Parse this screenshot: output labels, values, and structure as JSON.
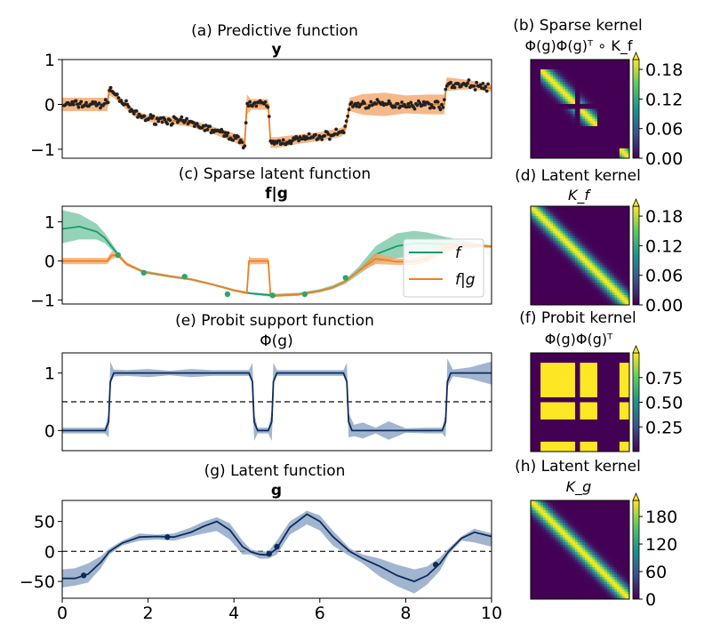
{
  "chart_data": [
    {
      "id": "a",
      "type": "line",
      "title": "(a) Predictive function",
      "subtitle": "y",
      "xlim": [
        0,
        10
      ],
      "ylim": [
        -1.2,
        1.0
      ],
      "yticks": [
        -1,
        0,
        1
      ],
      "series": [
        {
          "role": "band",
          "color": "#f5a66a",
          "x": [
            0,
            1.05,
            1.1,
            1.2,
            1.4,
            1.7,
            2.0,
            2.5,
            3.0,
            3.5,
            4.0,
            4.25,
            4.3,
            4.4,
            4.7,
            4.8,
            4.85,
            5.0,
            5.5,
            6.0,
            6.5,
            6.6,
            6.7,
            7.0,
            7.5,
            8.0,
            8.5,
            8.9,
            8.95,
            9.0,
            9.5,
            10
          ],
          "upper": [
            0.15,
            0.15,
            0.35,
            0.32,
            0.12,
            -0.14,
            -0.24,
            -0.27,
            -0.34,
            -0.49,
            -0.64,
            -0.77,
            0.22,
            0.12,
            0.12,
            0.12,
            -0.73,
            -0.73,
            -0.67,
            -0.62,
            -0.52,
            -0.44,
            0.15,
            0.23,
            0.26,
            0.2,
            0.22,
            0.22,
            0.6,
            0.6,
            0.54,
            0.44
          ],
          "lower": [
            -0.15,
            -0.15,
            0.2,
            0.15,
            -0.03,
            -0.29,
            -0.39,
            -0.43,
            -0.5,
            -0.65,
            -0.84,
            -0.97,
            -0.22,
            -0.12,
            -0.12,
            -0.12,
            -0.97,
            -0.97,
            -0.88,
            -0.82,
            -0.72,
            -0.61,
            -0.15,
            -0.23,
            -0.26,
            -0.2,
            -0.22,
            -0.22,
            0.3,
            0.3,
            0.34,
            0.28
          ]
        },
        {
          "role": "mean",
          "color": "#f07f1e",
          "x": [
            0,
            1.05,
            1.1,
            1.2,
            1.4,
            1.7,
            2.0,
            2.5,
            3.0,
            3.5,
            4.0,
            4.25,
            4.3,
            4.4,
            4.7,
            4.8,
            4.85,
            5.0,
            5.5,
            6.0,
            6.5,
            6.6,
            6.7,
            7.0,
            7.5,
            8.0,
            8.5,
            8.9,
            8.95,
            9.0,
            9.5,
            10
          ],
          "y": [
            0,
            0,
            0.37,
            0.26,
            0.05,
            -0.22,
            -0.32,
            -0.35,
            -0.42,
            -0.57,
            -0.74,
            -0.87,
            0,
            0,
            0,
            0,
            -0.85,
            -0.85,
            -0.78,
            -0.72,
            -0.62,
            -0.53,
            0,
            0,
            0,
            0,
            0,
            0,
            0.45,
            0.45,
            0.44,
            0.36
          ]
        }
      ]
    },
    {
      "id": "c",
      "type": "line",
      "title": "(c) Sparse latent function",
      "subtitle": "f|g",
      "xlim": [
        0,
        10
      ],
      "ylim": [
        -1.1,
        1.4
      ],
      "yticks": [
        -1,
        0,
        1
      ],
      "legend": {
        "position": "right",
        "entries": [
          "f",
          "f|g"
        ]
      },
      "series": [
        {
          "role": "band",
          "color": "#7ac8a8",
          "x": [
            0,
            0.4,
            0.8,
            1.0,
            1.3,
            1.5,
            1.9,
            2.5,
            3.0,
            3.5,
            4.0,
            4.4,
            4.9,
            5.5,
            6.0,
            6.3,
            6.6,
            6.9,
            7.3,
            7.8,
            8.2,
            8.5,
            8.9,
            9.3,
            9.7,
            10
          ],
          "upper": [
            1.3,
            1.2,
            0.95,
            0.7,
            0.22,
            -0.05,
            -0.24,
            -0.36,
            -0.44,
            -0.57,
            -0.72,
            -0.8,
            -0.84,
            -0.81,
            -0.72,
            -0.62,
            -0.47,
            -0.15,
            0.38,
            0.71,
            0.77,
            0.73,
            0.62,
            0.53,
            0.45,
            0.4
          ],
          "lower": [
            0.45,
            0.55,
            0.55,
            0.45,
            0.1,
            -0.12,
            -0.32,
            -0.42,
            -0.5,
            -0.63,
            -0.78,
            -0.86,
            -0.92,
            -0.89,
            -0.8,
            -0.72,
            -0.58,
            -0.35,
            -0.05,
            0.07,
            0.13,
            0.18,
            0.25,
            0.3,
            0.34,
            0.34
          ]
        },
        {
          "role": "mean",
          "name": "f",
          "color": "#1a9a6a",
          "x": [
            0,
            0.4,
            0.8,
            1.0,
            1.3,
            1.5,
            1.9,
            2.5,
            3.0,
            3.5,
            4.0,
            4.4,
            4.9,
            5.5,
            6.0,
            6.3,
            6.6,
            6.9,
            7.3,
            7.8,
            8.2,
            8.5,
            8.9,
            9.3,
            9.7,
            10
          ],
          "y": [
            0.82,
            0.88,
            0.75,
            0.58,
            0.16,
            -0.08,
            -0.28,
            -0.39,
            -0.47,
            -0.6,
            -0.75,
            -0.83,
            -0.88,
            -0.85,
            -0.76,
            -0.67,
            -0.52,
            -0.25,
            0.17,
            0.38,
            0.45,
            0.45,
            0.43,
            0.41,
            0.39,
            0.37
          ]
        },
        {
          "role": "band",
          "color": "#f5a66a",
          "x": [
            0,
            1.05,
            1.15,
            1.3,
            1.5,
            1.9,
            2.5,
            3.0,
            3.5,
            4.0,
            4.3,
            4.35,
            4.4,
            4.8,
            4.85,
            4.9,
            5.5,
            6.0,
            6.3,
            6.6,
            6.9,
            7.3,
            7.8,
            8.2,
            8.5,
            8.9,
            9.3,
            9.7,
            10
          ],
          "upper": [
            0.08,
            0.08,
            0.24,
            0.2,
            -0.03,
            -0.26,
            -0.37,
            -0.45,
            -0.58,
            -0.72,
            -0.79,
            0.12,
            0.08,
            0.08,
            -0.84,
            -0.86,
            -0.83,
            -0.74,
            -0.65,
            -0.49,
            -0.22,
            0.2,
            0.06,
            0.08,
            0.18,
            0.42,
            0.45,
            0.42,
            0.39
          ],
          "lower": [
            -0.08,
            -0.08,
            0.05,
            0.1,
            -0.12,
            -0.3,
            -0.41,
            -0.49,
            -0.62,
            -0.78,
            -0.85,
            -0.12,
            -0.08,
            -0.08,
            -0.92,
            -0.92,
            -0.89,
            -0.8,
            -0.7,
            -0.55,
            -0.3,
            -0.08,
            -0.1,
            -0.1,
            -0.05,
            0.22,
            0.34,
            0.36,
            0.34
          ]
        },
        {
          "role": "mean",
          "name": "f|g",
          "color": "#f07f1e",
          "x": [
            0,
            1.05,
            1.15,
            1.3,
            1.5,
            1.9,
            2.5,
            3.0,
            3.5,
            4.0,
            4.3,
            4.35,
            4.4,
            4.8,
            4.85,
            4.9,
            5.5,
            6.0,
            6.3,
            6.6,
            6.9,
            7.3,
            7.8,
            8.2,
            8.5,
            8.9,
            9.3,
            9.7,
            10
          ],
          "y": [
            0,
            0,
            0.14,
            0.15,
            -0.08,
            -0.28,
            -0.39,
            -0.47,
            -0.6,
            -0.75,
            -0.82,
            0,
            0,
            0,
            -0.88,
            -0.89,
            -0.86,
            -0.77,
            -0.68,
            -0.52,
            -0.26,
            0.06,
            -0.02,
            -0.01,
            0.06,
            0.32,
            0.4,
            0.39,
            0.37
          ]
        },
        {
          "role": "points",
          "color": "#2ea56e",
          "x": [
            1.3,
            1.9,
            2.85,
            3.85,
            4.9,
            5.65,
            6.6
          ],
          "y": [
            0.15,
            -0.3,
            -0.4,
            -0.85,
            -0.88,
            -0.85,
            -0.43
          ]
        }
      ]
    },
    {
      "id": "e",
      "type": "line",
      "title": "(e) Probit support function",
      "subtitle": "Φ(g)",
      "xlim": [
        0,
        10
      ],
      "ylim": [
        -0.35,
        1.35
      ],
      "yticks": [
        0,
        1
      ],
      "reference_line": 0.5,
      "series": [
        {
          "role": "band",
          "color": "#8aa3c4",
          "x": [
            0,
            1.0,
            1.08,
            1.1,
            1.12,
            1.2,
            1.5,
            2.0,
            2.5,
            3.0,
            3.5,
            4.0,
            4.35,
            4.43,
            4.45,
            4.47,
            4.55,
            4.8,
            4.88,
            4.9,
            4.92,
            5.0,
            5.5,
            6.0,
            6.55,
            6.63,
            6.65,
            6.67,
            6.8,
            7.0,
            7.3,
            7.6,
            8.0,
            8.5,
            8.85,
            8.93,
            8.95,
            8.97,
            9.1,
            9.5,
            10
          ],
          "upper": [
            0.05,
            0.05,
            0.3,
            0.7,
            1.2,
            1.06,
            1.05,
            1.07,
            1.04,
            1.07,
            1.05,
            1.05,
            1.05,
            1.18,
            0.8,
            0.3,
            0.05,
            0.05,
            0.3,
            0.8,
            1.18,
            1.05,
            1.05,
            1.05,
            1.05,
            1.18,
            0.7,
            0.3,
            0.1,
            0.14,
            0.05,
            0.16,
            0.04,
            0.05,
            0.05,
            0.3,
            0.7,
            1.25,
            1.06,
            1.1,
            1.2
          ],
          "lower": [
            -0.05,
            -0.05,
            -0.12,
            0.3,
            0.8,
            0.94,
            0.95,
            0.93,
            0.96,
            0.93,
            0.95,
            0.95,
            0.95,
            0.82,
            0.2,
            -0.18,
            -0.05,
            -0.05,
            -0.18,
            0.2,
            0.82,
            0.95,
            0.95,
            0.95,
            0.95,
            0.82,
            0.3,
            -0.12,
            -0.1,
            -0.14,
            -0.05,
            -0.16,
            -0.04,
            -0.05,
            -0.05,
            -0.12,
            0.3,
            0.75,
            0.94,
            0.9,
            0.8
          ]
        },
        {
          "role": "mean",
          "color": "#0d2c5a",
          "x": [
            0,
            1.0,
            1.08,
            1.1,
            1.12,
            1.2,
            4.35,
            4.43,
            4.45,
            4.47,
            4.55,
            4.8,
            4.88,
            4.9,
            4.92,
            5.0,
            6.55,
            6.63,
            6.65,
            6.67,
            6.75,
            8.85,
            8.93,
            8.95,
            8.97,
            9.05,
            10
          ],
          "y": [
            0,
            0,
            0.15,
            0.5,
            0.85,
            1,
            1,
            0.85,
            0.5,
            0.15,
            0,
            0,
            0.15,
            0.5,
            0.85,
            1,
            1,
            0.85,
            0.5,
            0.15,
            0,
            0,
            0.15,
            0.5,
            0.85,
            1,
            1
          ]
        }
      ]
    },
    {
      "id": "g",
      "type": "line",
      "title": "(g) Latent function",
      "subtitle": "g",
      "xlim": [
        0,
        10
      ],
      "ylim": [
        -78,
        85
      ],
      "yticks": [
        -50,
        0,
        50
      ],
      "xticks": [
        0,
        2,
        4,
        6,
        8,
        10
      ],
      "reference_line": 0,
      "series": [
        {
          "role": "band",
          "color": "#8aa3c4",
          "x": [
            0,
            0.3,
            0.6,
            0.9,
            1.1,
            1.4,
            1.8,
            2.2,
            2.6,
            3.0,
            3.3,
            3.6,
            3.9,
            4.2,
            4.4,
            4.6,
            4.8,
            5.0,
            5.3,
            5.7,
            6.0,
            6.3,
            6.7,
            7.0,
            7.4,
            7.8,
            8.2,
            8.5,
            8.8,
            9.0,
            9.3,
            9.6,
            10
          ],
          "upper": [
            -30,
            -28,
            -20,
            -8,
            5,
            18,
            30,
            28,
            30,
            40,
            50,
            57,
            47,
            18,
            3,
            0,
            0,
            18,
            50,
            68,
            60,
            35,
            5,
            -5,
            -12,
            -22,
            -30,
            -25,
            -10,
            5,
            25,
            38,
            30
          ],
          "lower": [
            -60,
            -57,
            -52,
            -28,
            -5,
            10,
            18,
            20,
            18,
            25,
            30,
            34,
            20,
            -5,
            -5,
            -12,
            -12,
            -5,
            28,
            45,
            35,
            10,
            -8,
            -20,
            -42,
            -58,
            -70,
            -55,
            -32,
            -5,
            18,
            15,
            8
          ]
        },
        {
          "role": "mean",
          "color": "#0d2c5a",
          "x": [
            0,
            0.3,
            0.6,
            0.9,
            1.1,
            1.4,
            1.8,
            2.2,
            2.6,
            3.0,
            3.3,
            3.6,
            3.9,
            4.2,
            4.4,
            4.6,
            4.8,
            5.0,
            5.3,
            5.7,
            6.0,
            6.3,
            6.7,
            7.0,
            7.4,
            7.8,
            8.2,
            8.5,
            8.8,
            9.0,
            9.3,
            9.6,
            10
          ],
          "y": [
            -45,
            -45,
            -38,
            -18,
            0,
            14,
            24,
            25,
            24,
            32,
            42,
            50,
            36,
            8,
            -1,
            -5,
            -6,
            5,
            40,
            62,
            50,
            25,
            0,
            -12,
            -25,
            -40,
            -50,
            -40,
            -20,
            0,
            22,
            32,
            25
          ]
        },
        {
          "role": "points",
          "color": "#0d2c5a",
          "x": [
            0.5,
            2.45,
            4.82,
            5.0,
            8.7
          ],
          "y": [
            -40,
            24,
            -4,
            8,
            -22
          ]
        }
      ]
    }
  ],
  "kernels": [
    {
      "id": "b",
      "title": "(b) Sparse kernel",
      "subtitle": "Φ(g)Φ(g)ᵀ ∘ K_f",
      "cmap": "viridis",
      "vmax": 0.2,
      "ticks": [
        {
          "label": "0.18",
          "value": 0.18
        },
        {
          "label": "0.12",
          "value": 0.12
        },
        {
          "label": "0.06",
          "value": 0.06
        },
        {
          "label": "0.00",
          "value": 0.0
        }
      ]
    },
    {
      "id": "d",
      "title": "(d) Latent kernel",
      "subtitle": "K_f",
      "cmap": "viridis",
      "vmax": 0.2,
      "ticks": [
        {
          "label": "0.18",
          "value": 0.18
        },
        {
          "label": "0.12",
          "value": 0.12
        },
        {
          "label": "0.06",
          "value": 0.06
        },
        {
          "label": "0.00",
          "value": 0.0
        }
      ]
    },
    {
      "id": "f",
      "title": "(f) Probit kernel",
      "subtitle": "Φ(g)Φ(g)ᵀ",
      "cmap": "viridis",
      "vmax": 1.0,
      "ticks": [
        {
          "label": "0.75",
          "value": 0.75
        },
        {
          "label": "0.50",
          "value": 0.5
        },
        {
          "label": "0.25",
          "value": 0.25
        }
      ]
    },
    {
      "id": "h",
      "title": "(h) Latent kernel",
      "subtitle": "K_g",
      "cmap": "viridis",
      "vmax": 215,
      "ticks": [
        {
          "label": "180",
          "value": 180
        },
        {
          "label": "120",
          "value": 120
        },
        {
          "label": "60",
          "value": 60
        },
        {
          "label": "0",
          "value": 0
        }
      ]
    }
  ]
}
